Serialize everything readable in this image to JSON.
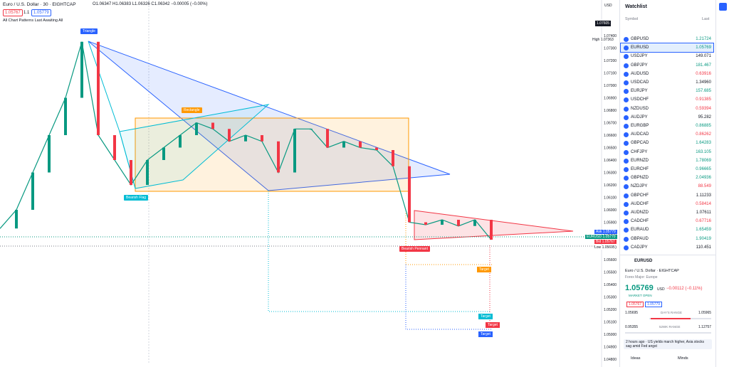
{
  "header": {
    "symbol": "Euro / U.S. Dollar · 30 · EIGHTCAP",
    "ohlc": "O1.06347 H1.06383 L1.06326 C1.06342 −0.00005 (−0.00%)",
    "sell": "1.05767",
    "spread": "1.1",
    "buy": "1.05779",
    "indicator": "All Chart Patterns Last Awaiting All"
  },
  "chart": {
    "annotations": {
      "triangle": "Triangle",
      "rectangle": "Rectangle",
      "bearish_flag": "Bearish Flag",
      "bearish_pennant": "Bearish Pennant",
      "targets": [
        "Target",
        "Target",
        "Target",
        "Target"
      ]
    },
    "currency": "USD",
    "price_axis": [
      "1.07400",
      "1.07300",
      "1.07200",
      "1.07100",
      "1.07000",
      "1.06900",
      "1.06800",
      "1.06700",
      "1.06600",
      "1.06500",
      "1.06400",
      "1.06300",
      "1.06200",
      "1.06100",
      "1.06000",
      "1.05900",
      "1.05800",
      "1.05700",
      "1.05600",
      "1.05500",
      "1.05400",
      "1.05300",
      "1.05200",
      "1.05100",
      "1.05000",
      "1.04900",
      "1.04800"
    ],
    "price_tags": {
      "top": "1.07605",
      "high_label": "High",
      "high": "1.07363",
      "ask_label": "Ask",
      "ask": "1.05779",
      "sym_label": "EURUSD",
      "last": "1.05770",
      "bid_label": "Bid",
      "bid": "1.05767",
      "low_label": "Low",
      "low": "1.05695"
    },
    "closes": [
      1.0585,
      1.06,
      1.063,
      1.066,
      1.069,
      1.0735,
      1.066,
      1.064,
      1.062,
      1.064,
      1.065,
      1.066,
      1.067,
      1.0665,
      1.0655,
      1.066,
      1.0655,
      1.063,
      1.0665,
      1.0665,
      1.065,
      1.0655,
      1.065,
      1.0648,
      1.0635,
      1.059,
      1.0588,
      1.0592,
      1.0587,
      1.0592,
      1.0576
    ]
  },
  "watchlist": {
    "title": "Watchlist",
    "col_symbol": "Symbol",
    "col_last": "Last",
    "rows": [
      {
        "symbol": "GBPUSD",
        "last": "1.21724",
        "color": "#089981"
      },
      {
        "symbol": "EURUSD",
        "last": "1.05769",
        "color": "#089981"
      },
      {
        "symbol": "USDJPY",
        "last": "149.071",
        "color": "#131722"
      },
      {
        "symbol": "GBPJPY",
        "last": "181.467",
        "color": "#089981"
      },
      {
        "symbol": "AUDUSD",
        "last": "0.63916",
        "color": "#f23645"
      },
      {
        "symbol": "USDCAD",
        "last": "1.34960",
        "color": "#131722"
      },
      {
        "symbol": "EURJPY",
        "last": "157.685",
        "color": "#089981"
      },
      {
        "symbol": "USDCHF",
        "last": "0.91385",
        "color": "#f23645"
      },
      {
        "symbol": "NZDUSD",
        "last": "0.59394",
        "color": "#f23645"
      },
      {
        "symbol": "AUDJPY",
        "last": "95.282",
        "color": "#131722"
      },
      {
        "symbol": "EURGBP",
        "last": "0.86885",
        "color": "#089981"
      },
      {
        "symbol": "AUDCAD",
        "last": "0.86262",
        "color": "#f23645"
      },
      {
        "symbol": "GBPCAD",
        "last": "1.64283",
        "color": "#089981"
      },
      {
        "symbol": "CHFJPY",
        "last": "163.105",
        "color": "#089981"
      },
      {
        "symbol": "EURNZD",
        "last": "1.78069",
        "color": "#089981"
      },
      {
        "symbol": "EURCHF",
        "last": "0.96665",
        "color": "#089981"
      },
      {
        "symbol": "GBPNZD",
        "last": "2.04936",
        "color": "#089981"
      },
      {
        "symbol": "NZDJPY",
        "last": "88.549",
        "color": "#f23645"
      },
      {
        "symbol": "GBPCHF",
        "last": "1.11233",
        "color": "#131722"
      },
      {
        "symbol": "AUDCHF",
        "last": "0.58414",
        "color": "#f23645"
      },
      {
        "symbol": "AUDNZD",
        "last": "1.07611",
        "color": "#131722"
      },
      {
        "symbol": "CADCHF",
        "last": "0.67716",
        "color": "#f23645"
      },
      {
        "symbol": "EURAUD",
        "last": "1.65459",
        "color": "#089981"
      },
      {
        "symbol": "GBPAUD",
        "last": "1.90419",
        "color": "#089981"
      },
      {
        "symbol": "CADJPY",
        "last": "110.451",
        "color": "#131722"
      }
    ]
  },
  "detail": {
    "symbol": "EURUSD",
    "name": "Euro / U.S. Dollar · EIGHTCAP",
    "category": "Forex Major: Europe",
    "price": "1.05769",
    "currency": "USD",
    "change": "−0.00112 (−0.11%)",
    "status": "MARKET OPEN",
    "bid": "1.05767",
    "ask": "1.05779",
    "day_low": "1.05695",
    "day_label": "DAY'S RANGE",
    "day_high": "1.05965",
    "wk_low": "0.95355",
    "wk_label": "52WK RANGE",
    "wk_high": "1.12757",
    "news": "2 hours ago · US yields march higher, Asia stocks sag amid Fed angst",
    "ideas": "Ideas",
    "minds": "Minds"
  }
}
